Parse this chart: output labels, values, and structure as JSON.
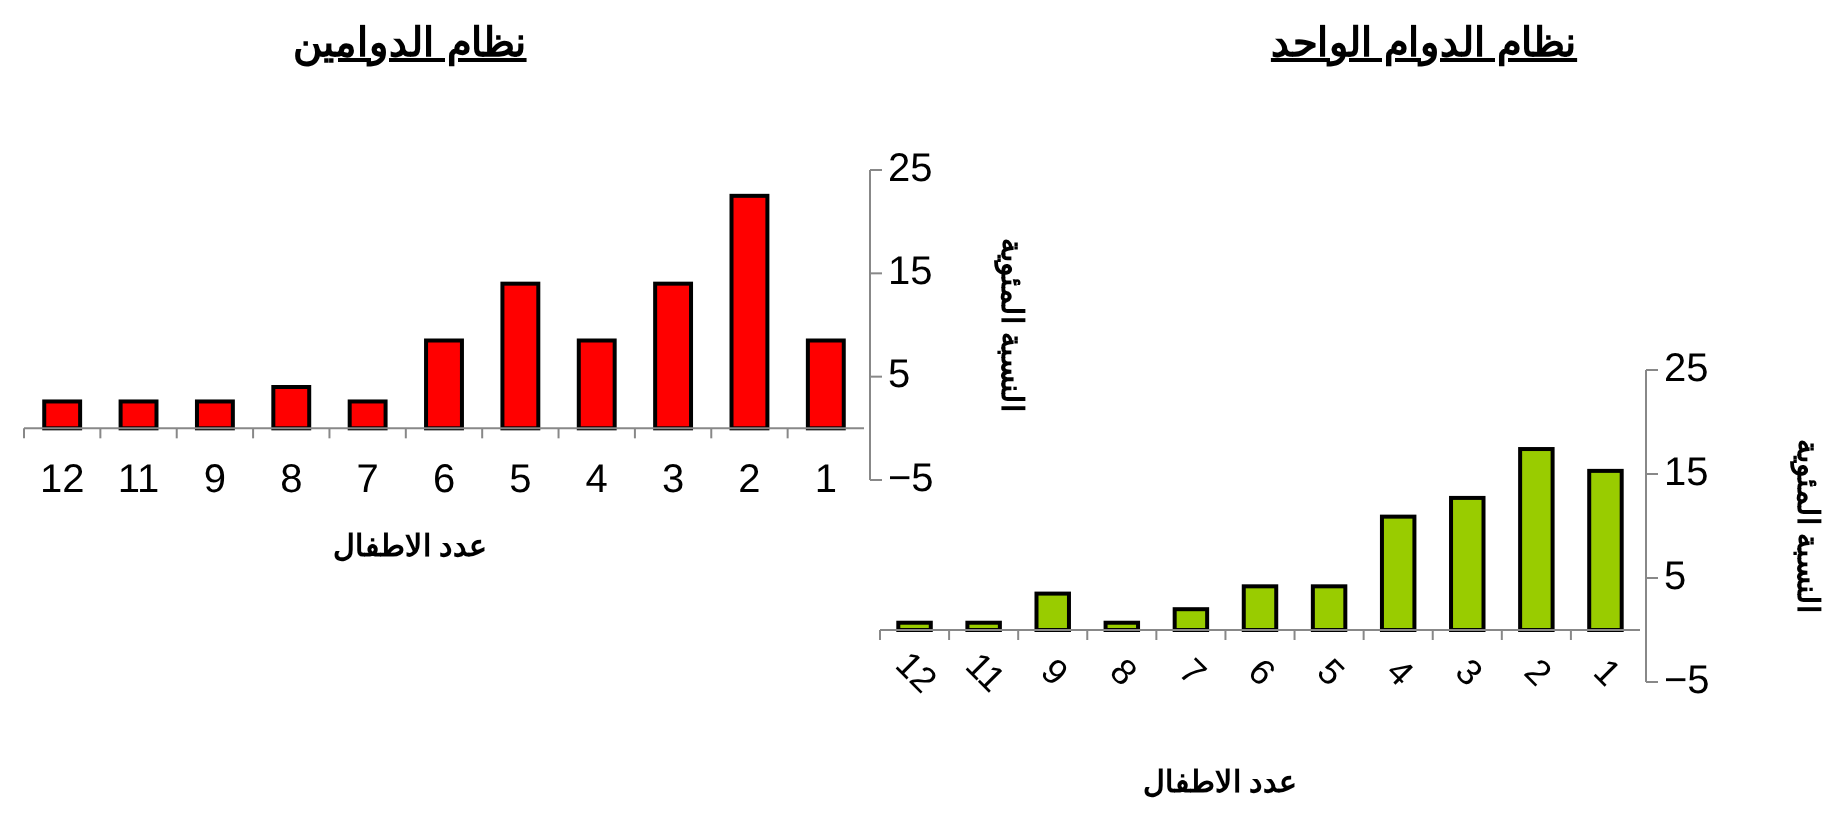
{
  "chart_data": [
    {
      "type": "bar",
      "title": "نظام الدوامين",
      "xlabel": "عدد الاطفال",
      "ylabel": "النسبة المئوية",
      "categories": [
        "12",
        "11",
        "9",
        "8",
        "7",
        "6",
        "5",
        "4",
        "3",
        "2",
        "1"
      ],
      "values": [
        2.6,
        2.6,
        2.6,
        4,
        2.6,
        8.5,
        14,
        8.5,
        14,
        22.5,
        8.5
      ],
      "color": "#ff0000",
      "ylim": [
        -5,
        25
      ],
      "yticks": [
        -5,
        5,
        15,
        25
      ]
    },
    {
      "type": "bar",
      "title": "نظام الدوام الواحد",
      "xlabel": "عدد الاطفال",
      "ylabel": "النسبة المئوية",
      "categories": [
        "12",
        "11",
        "9",
        "8",
        "7",
        "6",
        "5",
        "4",
        "3",
        "2",
        "1"
      ],
      "values": [
        0.7,
        0.7,
        3.5,
        0.7,
        2,
        4.2,
        4.2,
        10.9,
        12.7,
        17.4,
        15.3
      ],
      "color": "#99cc00",
      "ylim": [
        -5,
        25
      ],
      "yticks": [
        -5,
        5,
        15,
        25
      ]
    }
  ]
}
